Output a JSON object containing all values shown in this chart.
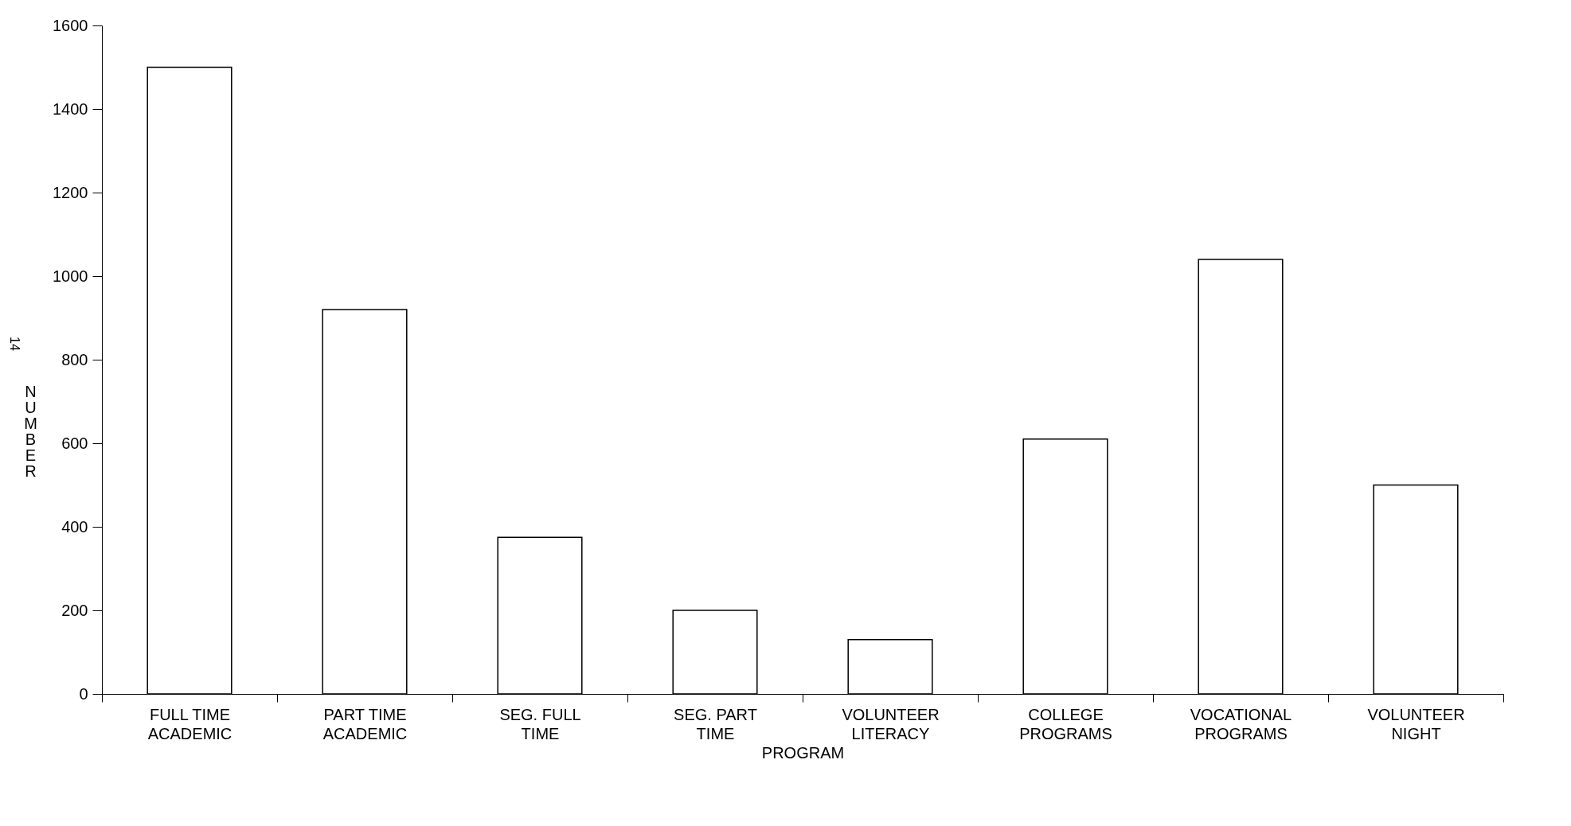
{
  "chart_data": {
    "type": "bar",
    "xlabel": "PROGRAM",
    "ylabel": "NUMBER",
    "annotations": [
      "14"
    ],
    "categories": [
      "FULL TIME\nACADEMIC",
      "PART TIME\nACADEMIC",
      "SEG. FULL\nTIME",
      "SEG. PART\nTIME",
      "VOLUNTEER\nLITERACY",
      "COLLEGE\nPROGRAMS",
      "VOCATIONAL\nPROGRAMS",
      "VOLUNTEER\nNIGHT"
    ],
    "values": [
      1500,
      920,
      375,
      200,
      130,
      610,
      1040,
      500
    ],
    "color": "#ffffff",
    "ylim": [
      0,
      1600
    ],
    "yticks": [
      0,
      200,
      400,
      600,
      800,
      1000,
      1200,
      1400,
      1600
    ],
    "grid": false
  }
}
